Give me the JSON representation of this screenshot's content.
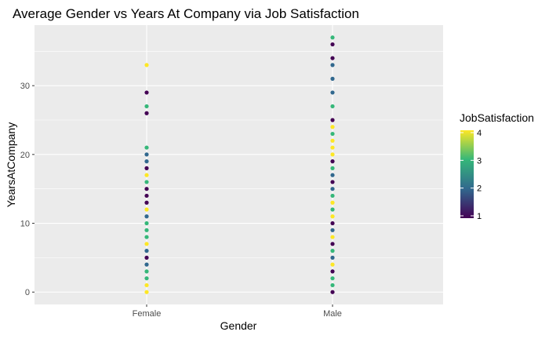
{
  "chart_data": {
    "type": "scatter",
    "title": "Average Gender vs Years At Company via Job Satisfaction",
    "xlabel": "Gender",
    "ylabel": "YearsAtCompany",
    "categories": [
      "Female",
      "Male"
    ],
    "ylim": [
      -1.8,
      38.8
    ],
    "yticks": [
      0,
      10,
      20,
      30
    ],
    "grid": true,
    "panel_background": "#ebebeb",
    "grid_color": "#ffffff",
    "legend": {
      "title": "JobSatisfaction",
      "placement": "right",
      "type": "colorbar",
      "range": [
        1,
        4
      ],
      "ticks": [
        1,
        2,
        3,
        4
      ],
      "colors": [
        "#440154",
        "#31688e",
        "#35b779",
        "#fde725"
      ]
    },
    "color_scale": {
      "1": "#440154",
      "2": "#31688e",
      "3": "#35b779",
      "4": "#fde725"
    },
    "points": [
      {
        "x": "Female",
        "y": 0,
        "c": 4
      },
      {
        "x": "Female",
        "y": 1,
        "c": 4
      },
      {
        "x": "Female",
        "y": 2,
        "c": 3
      },
      {
        "x": "Female",
        "y": 3,
        "c": 3
      },
      {
        "x": "Female",
        "y": 4,
        "c": 2
      },
      {
        "x": "Female",
        "y": 5,
        "c": 1
      },
      {
        "x": "Female",
        "y": 6,
        "c": 2
      },
      {
        "x": "Female",
        "y": 7,
        "c": 4
      },
      {
        "x": "Female",
        "y": 8,
        "c": 3
      },
      {
        "x": "Female",
        "y": 9,
        "c": 3
      },
      {
        "x": "Female",
        "y": 10,
        "c": 3
      },
      {
        "x": "Female",
        "y": 11,
        "c": 2
      },
      {
        "x": "Female",
        "y": 12,
        "c": 4
      },
      {
        "x": "Female",
        "y": 13,
        "c": 1
      },
      {
        "x": "Female",
        "y": 14,
        "c": 1
      },
      {
        "x": "Female",
        "y": 15,
        "c": 1
      },
      {
        "x": "Female",
        "y": 16,
        "c": 3
      },
      {
        "x": "Female",
        "y": 17,
        "c": 4
      },
      {
        "x": "Female",
        "y": 18,
        "c": 1
      },
      {
        "x": "Female",
        "y": 19,
        "c": 2
      },
      {
        "x": "Female",
        "y": 20,
        "c": 2
      },
      {
        "x": "Female",
        "y": 21,
        "c": 3
      },
      {
        "x": "Female",
        "y": 26,
        "c": 1
      },
      {
        "x": "Female",
        "y": 27,
        "c": 3
      },
      {
        "x": "Female",
        "y": 29,
        "c": 1
      },
      {
        "x": "Female",
        "y": 33,
        "c": 4
      },
      {
        "x": "Male",
        "y": 0,
        "c": 1
      },
      {
        "x": "Male",
        "y": 1,
        "c": 3
      },
      {
        "x": "Male",
        "y": 2,
        "c": 3
      },
      {
        "x": "Male",
        "y": 3,
        "c": 1
      },
      {
        "x": "Male",
        "y": 4,
        "c": 4
      },
      {
        "x": "Male",
        "y": 5,
        "c": 2
      },
      {
        "x": "Male",
        "y": 6,
        "c": 3
      },
      {
        "x": "Male",
        "y": 7,
        "c": 1
      },
      {
        "x": "Male",
        "y": 8,
        "c": 4
      },
      {
        "x": "Male",
        "y": 9,
        "c": 2
      },
      {
        "x": "Male",
        "y": 10,
        "c": 1
      },
      {
        "x": "Male",
        "y": 11,
        "c": 4
      },
      {
        "x": "Male",
        "y": 12,
        "c": 3
      },
      {
        "x": "Male",
        "y": 13,
        "c": 4
      },
      {
        "x": "Male",
        "y": 14,
        "c": 3
      },
      {
        "x": "Male",
        "y": 15,
        "c": 2
      },
      {
        "x": "Male",
        "y": 16,
        "c": 1
      },
      {
        "x": "Male",
        "y": 17,
        "c": 2
      },
      {
        "x": "Male",
        "y": 18,
        "c": 3
      },
      {
        "x": "Male",
        "y": 19,
        "c": 1
      },
      {
        "x": "Male",
        "y": 20,
        "c": 4
      },
      {
        "x": "Male",
        "y": 21,
        "c": 4
      },
      {
        "x": "Male",
        "y": 22,
        "c": 4
      },
      {
        "x": "Male",
        "y": 23,
        "c": 3
      },
      {
        "x": "Male",
        "y": 24,
        "c": 4
      },
      {
        "x": "Male",
        "y": 25,
        "c": 1
      },
      {
        "x": "Male",
        "y": 27,
        "c": 3
      },
      {
        "x": "Male",
        "y": 29,
        "c": 2
      },
      {
        "x": "Male",
        "y": 31,
        "c": 2
      },
      {
        "x": "Male",
        "y": 33,
        "c": 2
      },
      {
        "x": "Male",
        "y": 34,
        "c": 1
      },
      {
        "x": "Male",
        "y": 36,
        "c": 1
      },
      {
        "x": "Male",
        "y": 37,
        "c": 3
      }
    ]
  }
}
